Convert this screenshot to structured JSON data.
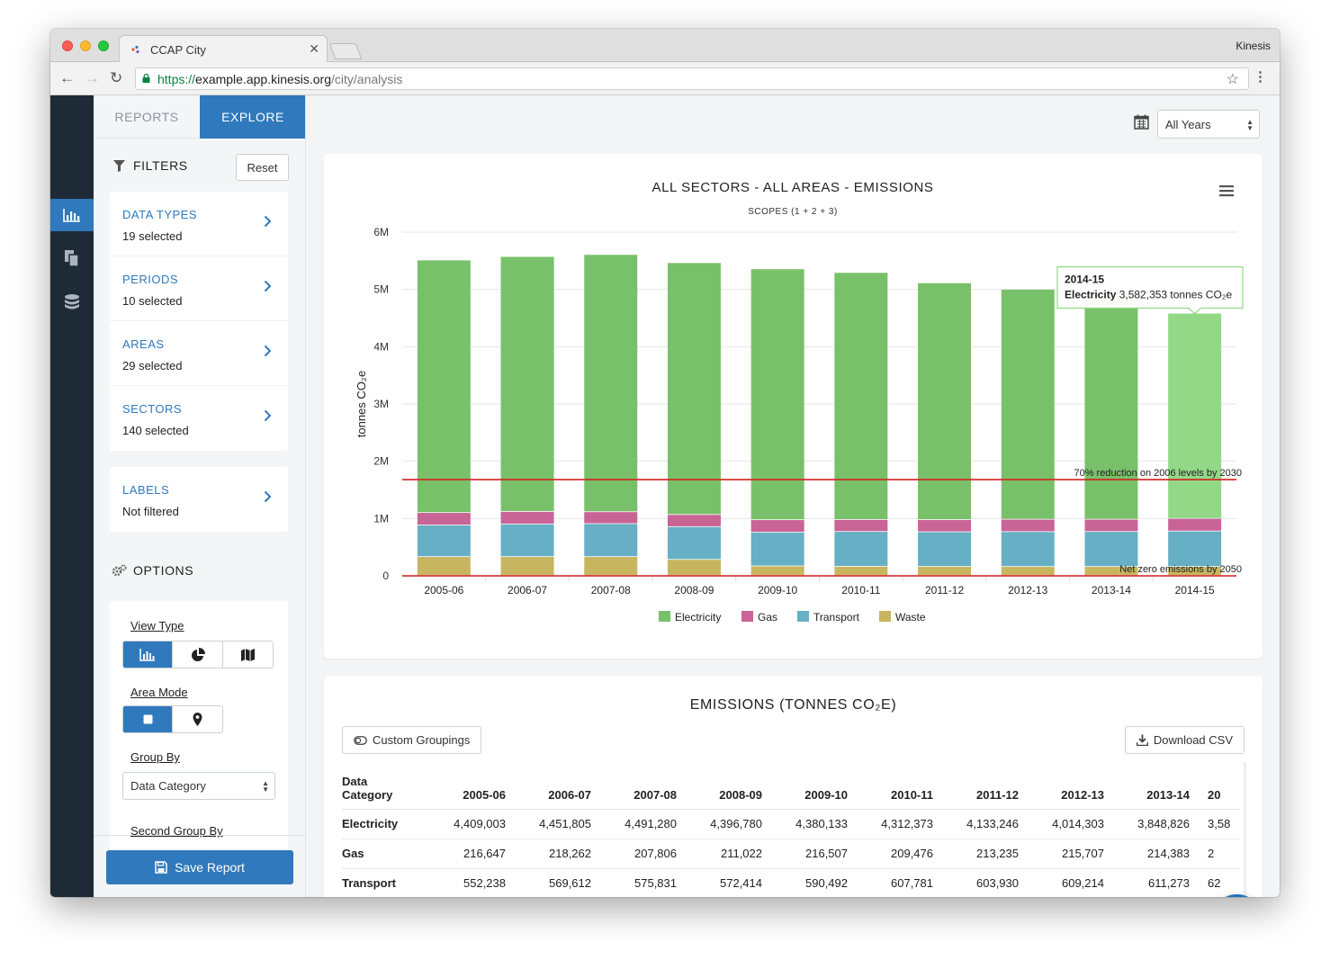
{
  "browser": {
    "tab_title": "CCAP City",
    "profile": "Kinesis",
    "url_scheme": "https://",
    "url_host": "example.app.kinesis.org",
    "url_path": "/city/analysis"
  },
  "sidebar": {
    "tabs": [
      {
        "label": "REPORTS",
        "active": false
      },
      {
        "label": "EXPLORE",
        "active": true
      }
    ],
    "filters_title": "FILTERS",
    "reset_label": "Reset",
    "filters": [
      {
        "label": "DATA TYPES",
        "value": "19 selected"
      },
      {
        "label": "PERIODS",
        "value": "10 selected"
      },
      {
        "label": "AREAS",
        "value": "29 selected"
      },
      {
        "label": "SECTORS",
        "value": "140 selected"
      }
    ],
    "labels_filter": {
      "label": "LABELS",
      "value": "Not filtered"
    },
    "options_title": "OPTIONS",
    "view_type_label": "View Type",
    "area_mode_label": "Area Mode",
    "group_by_label": "Group By",
    "group_by_value": "Data Category",
    "second_group_by_label": "Second Group By",
    "save_label": "Save Report"
  },
  "main": {
    "year_select": "All Years"
  },
  "chart_data": {
    "type": "bar",
    "stacked": true,
    "title": "ALL SECTORS - ALL AREAS - EMISSIONS",
    "subtitle": "SCOPES (1 + 2 + 3)",
    "ylabel": "tonnes CO₂e",
    "ylim": [
      0,
      6000000
    ],
    "y_ticks": [
      "0",
      "1M",
      "2M",
      "3M",
      "4M",
      "5M",
      "6M"
    ],
    "categories": [
      "2005-06",
      "2006-07",
      "2007-08",
      "2008-09",
      "2009-10",
      "2010-11",
      "2011-12",
      "2012-13",
      "2013-14",
      "2014-15"
    ],
    "series": [
      {
        "name": "Waste",
        "color": "#c8b560",
        "values": [
          329000,
          329000,
          329000,
          280000,
          166000,
          160000,
          158000,
          156000,
          156000,
          156000
        ]
      },
      {
        "name": "Transport",
        "color": "#67afc4",
        "values": [
          552238,
          569612,
          575831,
          572414,
          590492,
          607781,
          603930,
          609214,
          611273,
          620000
        ]
      },
      {
        "name": "Gas",
        "color": "#c86496",
        "values": [
          216647,
          218262,
          207806,
          211022,
          216507,
          209476,
          213235,
          215707,
          214383,
          220000
        ]
      },
      {
        "name": "Electricity",
        "color": "#79c06a",
        "values": [
          4409003,
          4451805,
          4491280,
          4396780,
          4380133,
          4312373,
          4133246,
          4014303,
          3848826,
          3582353
        ]
      }
    ],
    "highlight_bar": "2014-15",
    "highlight_color": "#92d887",
    "reference_lines": [
      {
        "value": 1680000,
        "label": "70% reduction on 2006 levels by 2030",
        "color": "#d62020"
      },
      {
        "value": 0,
        "label": "Net zero emissions by 2050",
        "color": "#d62020"
      }
    ],
    "tooltip": {
      "period": "2014-15",
      "series": "Electricity",
      "value_text": "3,582,353 tonnes CO₂e"
    },
    "legend_position": "bottom",
    "grid": true
  },
  "table": {
    "title": "EMISSIONS (TONNES CO₂E)",
    "custom_groupings_label": "Custom Groupings",
    "download_label": "Download CSV",
    "header_first_line1": "Data",
    "header_first_line2": "Category",
    "columns": [
      "2005-06",
      "2006-07",
      "2007-08",
      "2008-09",
      "2009-10",
      "2010-11",
      "2011-12",
      "2012-13",
      "2013-14",
      "20"
    ],
    "rows": [
      {
        "name": "Electricity",
        "values": [
          "4,409,003",
          "4,451,805",
          "4,491,280",
          "4,396,780",
          "4,380,133",
          "4,312,373",
          "4,133,246",
          "4,014,303",
          "3,848,826",
          "3,58"
        ]
      },
      {
        "name": "Gas",
        "values": [
          "216,647",
          "218,262",
          "207,806",
          "211,022",
          "216,507",
          "209,476",
          "213,235",
          "215,707",
          "214,383",
          "2"
        ]
      },
      {
        "name": "Transport",
        "values": [
          "552,238",
          "569,612",
          "575,831",
          "572,414",
          "590,492",
          "607,781",
          "603,930",
          "609,214",
          "611,273",
          "62"
        ]
      }
    ]
  }
}
